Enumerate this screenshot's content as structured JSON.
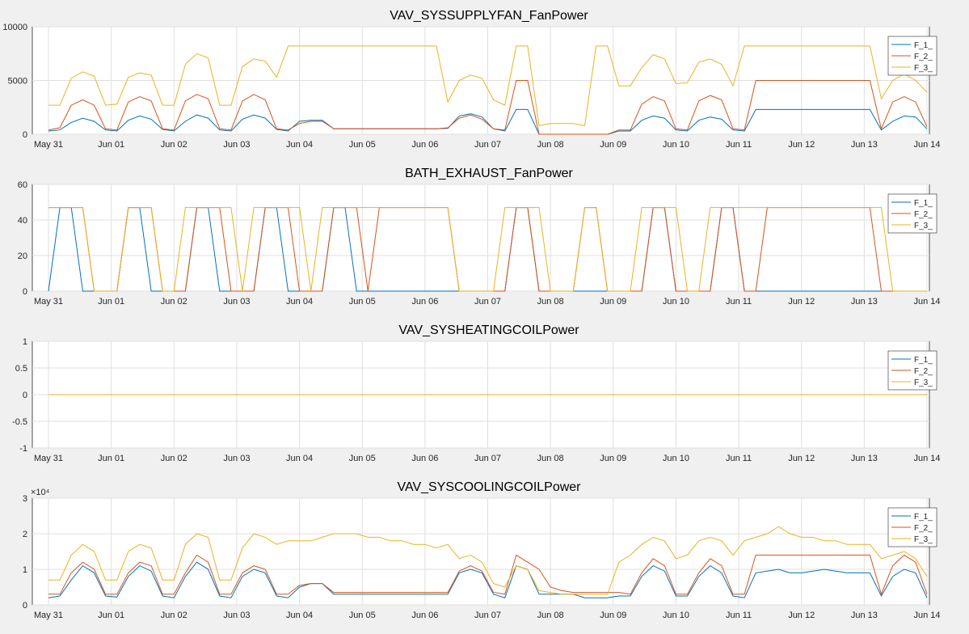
{
  "figure": {
    "background": "#f0f0f0",
    "axes_background": "#ffffff",
    "grid_color": "#dfdfdf"
  },
  "chart_data": [
    {
      "type": "line",
      "title": "VAV_SYSSUPPLYFAN_FanPower",
      "x_ticks": [
        "May 31",
        "Jun 01",
        "Jun 02",
        "Jun 03",
        "Jun 04",
        "Jun 05",
        "Jun 06",
        "Jun 07",
        "Jun 08",
        "Jun 09",
        "Jun 10",
        "Jun 11",
        "Jun 12",
        "Jun 13",
        "Jun 14"
      ],
      "ylim": [
        0,
        10000
      ],
      "y_ticks": [
        "0",
        "5000",
        "10000"
      ],
      "y_exponent": "",
      "grid": true,
      "legend": "top-right",
      "series": [
        {
          "name": "F_1_",
          "color": "#0072bd",
          "values": [
            300,
            400,
            1100,
            1500,
            1200,
            400,
            300,
            1300,
            1700,
            1400,
            450,
            300,
            1200,
            1800,
            1500,
            400,
            300,
            1400,
            1800,
            1500,
            450,
            300,
            1200,
            1300,
            1300,
            500,
            500,
            500,
            500,
            500,
            500,
            500,
            500,
            500,
            500,
            550,
            1700,
            1900,
            1600,
            500,
            300,
            2300,
            2300,
            0,
            0,
            0,
            0,
            0,
            0,
            0,
            300,
            300,
            1300,
            1700,
            1500,
            400,
            300,
            1300,
            1600,
            1400,
            400,
            300,
            2300,
            2300,
            2300,
            2300,
            2300,
            2300,
            2300,
            2300,
            2300,
            2300,
            2300,
            400,
            1200,
            1700,
            1600,
            500
          ]
        },
        {
          "name": "F_2_",
          "color": "#d95319",
          "values": [
            400,
            600,
            2700,
            3200,
            2700,
            500,
            400,
            3000,
            3500,
            3100,
            500,
            400,
            3100,
            3700,
            3300,
            500,
            400,
            3100,
            3700,
            3200,
            500,
            400,
            1000,
            1200,
            1200,
            500,
            500,
            500,
            500,
            500,
            500,
            500,
            500,
            500,
            500,
            600,
            1500,
            1800,
            1400,
            500,
            400,
            5000,
            5000,
            0,
            0,
            0,
            0,
            0,
            0,
            0,
            400,
            400,
            2800,
            3500,
            3100,
            500,
            400,
            3100,
            3600,
            3200,
            500,
            400,
            5000,
            5000,
            5000,
            5000,
            5000,
            5000,
            5000,
            5000,
            5000,
            5000,
            5000,
            500,
            3000,
            3500,
            3000,
            700
          ]
        },
        {
          "name": "F_3_",
          "color": "#edb120",
          "values": [
            2700,
            2700,
            5200,
            5800,
            5400,
            2700,
            2800,
            5300,
            5700,
            5500,
            2700,
            2700,
            6500,
            7500,
            7100,
            2700,
            2700,
            6300,
            7000,
            6800,
            5300,
            8200,
            8200,
            8200,
            8200,
            8200,
            8200,
            8200,
            8200,
            8200,
            8200,
            8200,
            8200,
            8200,
            8200,
            3000,
            5000,
            5500,
            5200,
            3200,
            2700,
            8200,
            8200,
            800,
            1000,
            1000,
            1000,
            800,
            8200,
            8200,
            4500,
            4500,
            6200,
            7400,
            7000,
            4700,
            4800,
            6700,
            7000,
            6500,
            4500,
            8200,
            8200,
            8200,
            8200,
            8200,
            8200,
            8200,
            8200,
            8200,
            8200,
            8200,
            8200,
            3300,
            5000,
            5600,
            5000,
            3900
          ]
        }
      ]
    },
    {
      "type": "line",
      "title": "BATH_EXHAUST_FanPower",
      "x_ticks": [
        "May 31",
        "Jun 01",
        "Jun 02",
        "Jun 03",
        "Jun 04",
        "Jun 05",
        "Jun 06",
        "Jun 07",
        "Jun 08",
        "Jun 09",
        "Jun 10",
        "Jun 11",
        "Jun 12",
        "Jun 13",
        "Jun 14"
      ],
      "ylim": [
        0,
        60
      ],
      "y_ticks": [
        "0",
        "20",
        "40",
        "60"
      ],
      "y_exponent": "",
      "grid": true,
      "legend": "top-right",
      "series": [
        {
          "name": "F_1_",
          "color": "#0072bd",
          "values": [
            0,
            47,
            47,
            0,
            0,
            0,
            0,
            47,
            47,
            0,
            0,
            0,
            0,
            47,
            47,
            0,
            0,
            0,
            0,
            47,
            47,
            0,
            0,
            0,
            0,
            47,
            47,
            0,
            0,
            0,
            0,
            0,
            0,
            0,
            0,
            0,
            0,
            0,
            0,
            0,
            0,
            47,
            47,
            0,
            0,
            0,
            0,
            0,
            0,
            0,
            0,
            0,
            0,
            47,
            47,
            0,
            0,
            0,
            0,
            47,
            47,
            0,
            0,
            0,
            0,
            0,
            0,
            0,
            0,
            0,
            0,
            0,
            0,
            0,
            0,
            0,
            0,
            0
          ]
        },
        {
          "name": "F_2_",
          "color": "#d95319",
          "values": [
            47,
            47,
            47,
            47,
            0,
            0,
            0,
            47,
            47,
            47,
            0,
            0,
            0,
            47,
            47,
            47,
            0,
            0,
            0,
            47,
            47,
            47,
            0,
            0,
            0,
            47,
            47,
            47,
            0,
            47,
            47,
            47,
            47,
            47,
            47,
            47,
            0,
            0,
            0,
            0,
            0,
            47,
            47,
            0,
            0,
            0,
            0,
            47,
            47,
            0,
            0,
            0,
            0,
            47,
            47,
            0,
            0,
            0,
            0,
            47,
            47,
            0,
            0,
            47,
            47,
            47,
            47,
            47,
            47,
            47,
            47,
            47,
            47,
            0,
            0,
            0,
            0,
            0
          ]
        },
        {
          "name": "F_3_",
          "color": "#edb120",
          "values": [
            47,
            47,
            47,
            47,
            0,
            0,
            0,
            47,
            47,
            47,
            0,
            0,
            47,
            47,
            47,
            47,
            47,
            0,
            47,
            47,
            47,
            47,
            47,
            0,
            47,
            47,
            47,
            47,
            47,
            47,
            47,
            47,
            47,
            47,
            47,
            47,
            0,
            0,
            0,
            0,
            47,
            47,
            47,
            47,
            0,
            0,
            0,
            47,
            47,
            0,
            0,
            0,
            47,
            47,
            47,
            47,
            0,
            0,
            47,
            47,
            47,
            47,
            47,
            47,
            47,
            47,
            47,
            47,
            47,
            47,
            47,
            47,
            47,
            47,
            0,
            0,
            0,
            0
          ]
        }
      ]
    },
    {
      "type": "line",
      "title": "VAV_SYSHEATINGCOILPower",
      "x_ticks": [
        "May 31",
        "Jun 01",
        "Jun 02",
        "Jun 03",
        "Jun 04",
        "Jun 05",
        "Jun 06",
        "Jun 07",
        "Jun 08",
        "Jun 09",
        "Jun 10",
        "Jun 11",
        "Jun 12",
        "Jun 13",
        "Jun 14"
      ],
      "ylim": [
        -1,
        1
      ],
      "y_ticks": [
        "-1",
        "-0.5",
        "0",
        "0.5",
        "1"
      ],
      "y_exponent": "",
      "grid": true,
      "legend": "top-right",
      "series": [
        {
          "name": "F_1_",
          "color": "#0072bd",
          "values": [
            0,
            0
          ]
        },
        {
          "name": "F_2_",
          "color": "#d95319",
          "values": [
            0,
            0
          ]
        },
        {
          "name": "F_3_",
          "color": "#edb120",
          "values": [
            0,
            0
          ]
        }
      ]
    },
    {
      "type": "line",
      "title": "VAV_SYSCOOLINGCOILPower",
      "x_ticks": [
        "May 31",
        "Jun 01",
        "Jun 02",
        "Jun 03",
        "Jun 04",
        "Jun 05",
        "Jun 06",
        "Jun 07",
        "Jun 08",
        "Jun 09",
        "Jun 10",
        "Jun 11",
        "Jun 12",
        "Jun 13",
        "Jun 14"
      ],
      "ylim": [
        0,
        30000
      ],
      "y_ticks": [
        "0",
        "1",
        "2",
        "3"
      ],
      "y_exponent": "×10⁴",
      "grid": true,
      "legend": "top-right",
      "series": [
        {
          "name": "F_1_",
          "color": "#0072bd",
          "values": [
            2000,
            2500,
            7000,
            11000,
            9000,
            2500,
            2200,
            8000,
            11000,
            9500,
            2500,
            2000,
            8000,
            12000,
            10000,
            2500,
            2000,
            8000,
            10000,
            9000,
            2500,
            2000,
            5000,
            6000,
            6000,
            3000,
            3000,
            3000,
            3000,
            3000,
            3000,
            3000,
            3000,
            3000,
            3000,
            3000,
            9000,
            10000,
            9000,
            3000,
            2000,
            11000,
            10000,
            3000,
            3000,
            3000,
            3000,
            2000,
            2000,
            2000,
            2500,
            2500,
            8000,
            11000,
            9500,
            2500,
            2500,
            8000,
            11000,
            9000,
            2500,
            2000,
            9000,
            9500,
            10000,
            9000,
            9000,
            9500,
            10000,
            9500,
            9000,
            9000,
            9000,
            2500,
            8000,
            10000,
            9000,
            2000
          ]
        },
        {
          "name": "F_2_",
          "color": "#d95319",
          "values": [
            3000,
            3000,
            9000,
            12000,
            10000,
            3000,
            3000,
            9000,
            12000,
            11000,
            3000,
            3000,
            9000,
            14000,
            12000,
            3000,
            3000,
            9000,
            11000,
            10000,
            3000,
            3000,
            5500,
            6000,
            6000,
            3500,
            3500,
            3500,
            3500,
            3500,
            3500,
            3500,
            3500,
            3500,
            3500,
            3500,
            9500,
            11000,
            9500,
            3500,
            3000,
            14000,
            12000,
            10000,
            5000,
            4000,
            3500,
            3500,
            3500,
            3500,
            3500,
            3000,
            9000,
            13000,
            11000,
            3000,
            3000,
            9000,
            13000,
            11000,
            3000,
            3000,
            14000,
            14000,
            14000,
            14000,
            14000,
            14000,
            14000,
            14000,
            14000,
            14000,
            14000,
            3000,
            11000,
            14000,
            12000,
            3000
          ]
        },
        {
          "name": "F_3_",
          "color": "#edb120",
          "values": [
            7000,
            7000,
            14000,
            17000,
            15000,
            7000,
            7000,
            15000,
            17000,
            16000,
            7000,
            7000,
            17000,
            20000,
            19000,
            7000,
            7000,
            16000,
            20000,
            19000,
            17000,
            18000,
            18000,
            18000,
            19000,
            20000,
            20000,
            20000,
            19000,
            19000,
            18000,
            18000,
            17000,
            17000,
            16000,
            17000,
            13000,
            14000,
            12000,
            6000,
            5000,
            11000,
            10000,
            4000,
            3500,
            3000,
            3000,
            3000,
            3000,
            3000,
            12000,
            14000,
            17000,
            19000,
            18000,
            13000,
            14000,
            18000,
            19000,
            18000,
            14000,
            18000,
            19000,
            20000,
            22000,
            20000,
            19000,
            19000,
            18000,
            18000,
            17000,
            17000,
            17000,
            13000,
            14000,
            15000,
            13000,
            8000
          ]
        }
      ]
    }
  ]
}
